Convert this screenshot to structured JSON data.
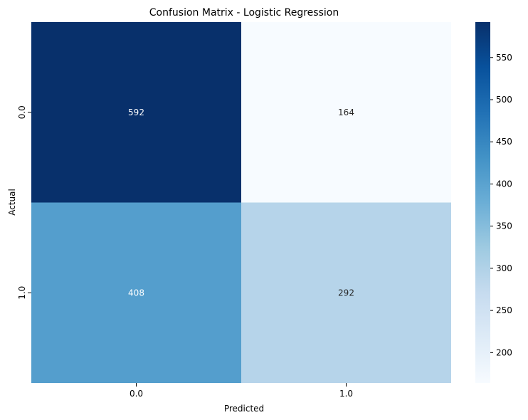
{
  "chart_data": {
    "type": "heatmap",
    "title": "Confusion Matrix - Logistic Regression",
    "xlabel": "Predicted",
    "ylabel": "Actual",
    "x_categories": [
      "0.0",
      "1.0"
    ],
    "y_categories": [
      "0.0",
      "1.0"
    ],
    "values": [
      [
        592,
        164
      ],
      [
        408,
        292
      ]
    ],
    "colormap": "Blues",
    "colorbar": {
      "range": [
        164,
        592
      ],
      "ticks": [
        200,
        250,
        300,
        350,
        400,
        450,
        500,
        550
      ],
      "tick_labels": [
        "200",
        "250",
        "300",
        "350",
        "400",
        "450",
        "500",
        "550"
      ]
    },
    "grid": false
  }
}
